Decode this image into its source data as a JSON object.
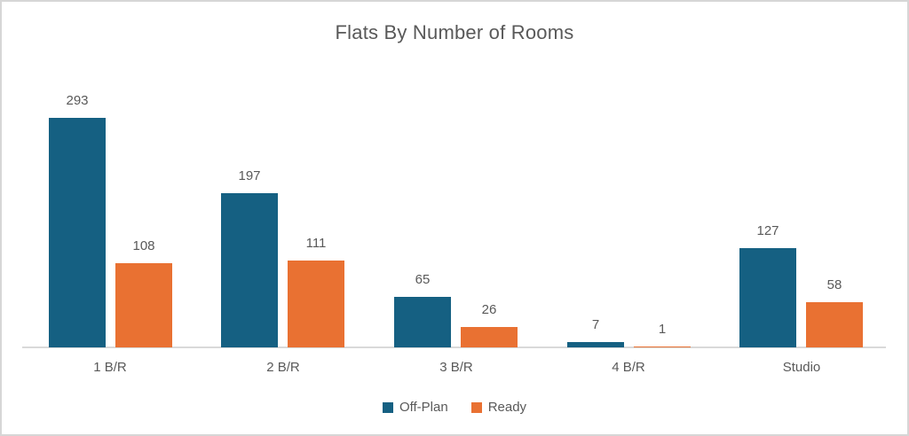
{
  "window": {
    "background": "#ffffff",
    "border_color": "#d6d6d6"
  },
  "chart_data": {
    "type": "bar",
    "title": "Flats By Number of Rooms",
    "categories": [
      "1 B/R",
      "2 B/R",
      "3 B/R",
      "4 B/R",
      "Studio"
    ],
    "series": [
      {
        "name": "Off-Plan",
        "color": "#156082",
        "values": [
          293,
          197,
          65,
          7,
          127
        ]
      },
      {
        "name": "Ready",
        "color": "#E97132",
        "values": [
          108,
          111,
          26,
          1,
          58
        ]
      }
    ],
    "data_labels": [
      [
        "293",
        "197",
        "65",
        "7",
        "127"
      ],
      [
        "108",
        "111",
        "26",
        "1",
        "58"
      ]
    ],
    "xlabel": "",
    "ylabel": "",
    "ylim": [
      0,
      300
    ],
    "grid": false,
    "legend_position": "bottom"
  },
  "colors": {
    "title_text": "#595959",
    "label_text": "#595959",
    "axis_line": "#d9d9d9",
    "off_plan": "#156082",
    "ready": "#E97132"
  }
}
